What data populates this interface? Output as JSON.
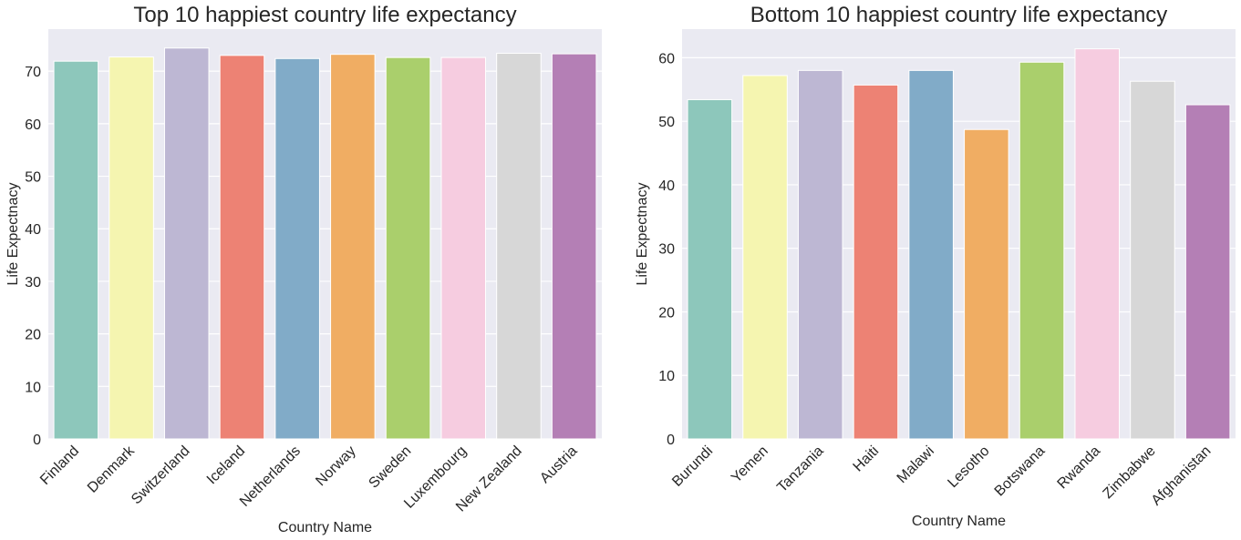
{
  "chart_data": [
    {
      "type": "bar",
      "title": "Top 10 happiest country life expectancy",
      "xlabel": "Country Name",
      "ylabel": "Life Expectnacy",
      "categories": [
        "Finland",
        "Denmark",
        "Switzerland",
        "Iceland",
        "Netherlands",
        "Norway",
        "Sweden",
        "Luxembourg",
        "New Zealand",
        "Austria"
      ],
      "values": [
        71.9,
        72.7,
        74.4,
        73.0,
        72.4,
        73.2,
        72.6,
        72.6,
        73.4,
        73.3
      ],
      "ylim": [
        0,
        78
      ],
      "yticks": [
        0,
        10,
        20,
        30,
        40,
        50,
        60,
        70
      ],
      "colors": [
        "#8dc7bb",
        "#f5f5b0",
        "#bdb7d3",
        "#ed8274",
        "#81abc8",
        "#f0ad63",
        "#aacf6c",
        "#f6cce0",
        "#d7d7d7",
        "#b47fb5"
      ],
      "grid": true,
      "background": "#eaeaf2"
    },
    {
      "type": "bar",
      "title": "Bottom 10 happiest country life expectancy",
      "xlabel": "Country Name",
      "ylabel": "Life Expectnacy",
      "categories": [
        "Burundi",
        "Yemen",
        "Tanzania",
        "Haiti",
        "Malawi",
        "Lesotho",
        "Botswana",
        "Rwanda",
        "Zimbabwe",
        "Afghanistan"
      ],
      "values": [
        53.4,
        57.2,
        58.0,
        55.7,
        58.0,
        48.7,
        59.3,
        61.4,
        56.3,
        52.6
      ],
      "ylim": [
        0,
        64.5
      ],
      "yticks": [
        0,
        10,
        20,
        30,
        40,
        50,
        60
      ],
      "colors": [
        "#8dc7bb",
        "#f5f5b0",
        "#bdb7d3",
        "#ed8274",
        "#81abc8",
        "#f0ad63",
        "#aacf6c",
        "#f6cce0",
        "#d7d7d7",
        "#b47fb5"
      ],
      "grid": true,
      "background": "#eaeaf2"
    }
  ]
}
